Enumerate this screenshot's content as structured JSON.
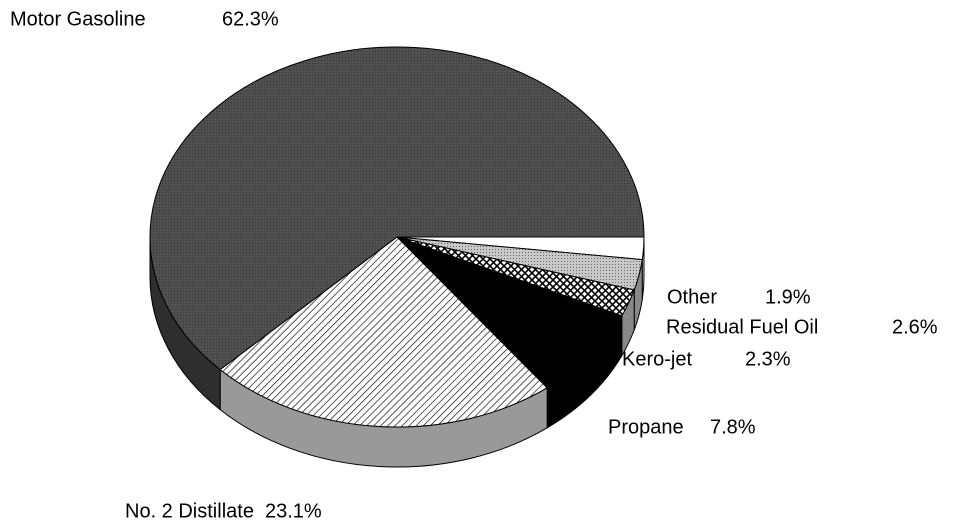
{
  "chart_data": {
    "type": "pie",
    "categories": [
      "Other",
      "Residual Fuel Oil",
      "Kero-jet",
      "Propane",
      "No. 2 Distillate",
      "Motor Gasoline"
    ],
    "values": [
      1.9,
      2.6,
      2.3,
      7.8,
      23.1,
      62.3
    ],
    "value_labels": [
      "1.9%",
      "2.6%",
      "2.3%",
      "7.8%",
      "23.1%",
      "62.3%"
    ],
    "colors": [
      "#ffffff",
      "#b0b0b0",
      "#ffffff",
      "#000000",
      "#ffffff",
      "#4d4d4d"
    ]
  }
}
